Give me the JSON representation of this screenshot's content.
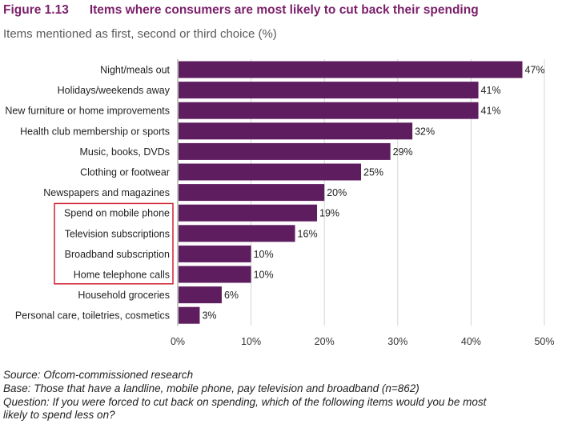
{
  "figure": {
    "number": "Figure 1.13",
    "title": "Items where consumers are most likely to cut back their spending",
    "subtitle": "Items mentioned as first, second or third choice (%)"
  },
  "chart_data": {
    "type": "bar",
    "orientation": "horizontal",
    "categories": [
      "Night/meals out",
      "Holidays/weekends away",
      "New furniture or home improvements",
      "Health club membership or sports",
      "Music, books, DVDs",
      "Clothing or footwear",
      "Newspapers and magazines",
      "Spend on mobile phone",
      "Television subscriptions",
      "Broadband subscription",
      "Home telephone calls",
      "Household groceries",
      "Personal care, toiletries, cosmetics"
    ],
    "values": [
      47,
      41,
      41,
      32,
      29,
      25,
      20,
      19,
      16,
      10,
      10,
      6,
      3
    ],
    "data_labels": [
      "47%",
      "41%",
      "41%",
      "32%",
      "29%",
      "25%",
      "20%",
      "19%",
      "16%",
      "10%",
      "10%",
      "6%",
      "3%"
    ],
    "xlim": [
      0,
      50
    ],
    "xticks": [
      0,
      10,
      20,
      30,
      40,
      50
    ],
    "xtick_labels": [
      "0%",
      "10%",
      "20%",
      "30%",
      "40%",
      "50%"
    ],
    "grid": "vertical",
    "bar_color": "#5e1d5e",
    "highlight_color": "#d0202e",
    "highlighted_categories": [
      "Spend on mobile phone",
      "Television subscriptions",
      "Broadband subscription",
      "Home telephone calls"
    ]
  },
  "footer": {
    "source": "Source: Ofcom-commissioned research",
    "base": "Base: Those that have a landline, mobile phone, pay television and broadband (n=862)",
    "question_line1": "Question: If you were forced to cut back on spending, which of the following items would you be most",
    "question_line2": "likely to spend less on?"
  }
}
